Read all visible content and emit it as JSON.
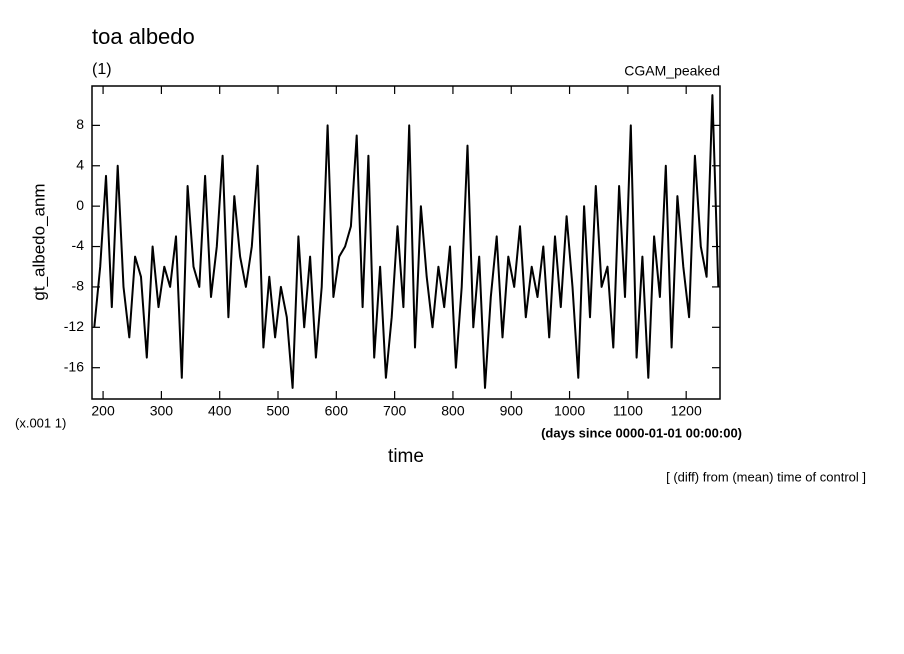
{
  "chart_data": {
    "type": "line",
    "title": "toa albedo",
    "subtitle": "(1)",
    "annotation": "CGAM_peaked",
    "y_label": "gt_albedo_anm",
    "y_unit": "(x.001 1)",
    "x_unit": "(days since 0000-01-01 00:00:00)",
    "x_label": "time",
    "footnote": "[ (diff) from (mean) time of control ]",
    "xlim": [
      181,
      1258
    ],
    "ylim": [
      -19.1,
      11.9
    ],
    "xticks": [
      200,
      300,
      400,
      500,
      600,
      700,
      800,
      900,
      1000,
      1100,
      1200
    ],
    "yticks": [
      -16,
      -12,
      -8,
      -4,
      0,
      4,
      8
    ],
    "x": [
      185,
      195,
      205,
      215,
      225,
      235,
      245,
      255,
      265,
      275,
      285,
      295,
      305,
      315,
      325,
      335,
      345,
      355,
      365,
      375,
      385,
      395,
      405,
      415,
      425,
      435,
      445,
      455,
      465,
      475,
      485,
      495,
      505,
      515,
      525,
      535,
      545,
      555,
      565,
      575,
      585,
      595,
      605,
      615,
      625,
      635,
      645,
      655,
      665,
      675,
      685,
      695,
      705,
      715,
      725,
      735,
      745,
      755,
      765,
      775,
      785,
      795,
      805,
      815,
      825,
      835,
      845,
      855,
      865,
      875,
      885,
      895,
      905,
      915,
      925,
      935,
      945,
      955,
      965,
      975,
      985,
      995,
      1005,
      1015,
      1025,
      1035,
      1045,
      1055,
      1065,
      1075,
      1085,
      1095,
      1105,
      1115,
      1125,
      1135,
      1145,
      1155,
      1165,
      1175,
      1185,
      1195,
      1205,
      1215,
      1225,
      1235,
      1245,
      1255
    ],
    "series": [
      {
        "color": "#000000",
        "values": [
          -12,
          -6,
          3,
          -10,
          4,
          -8,
          -13,
          -5,
          -7,
          -15,
          -4,
          -10,
          -6,
          -8,
          -3,
          -17,
          2,
          -6,
          -8,
          3,
          -9,
          -4,
          5,
          -11,
          1,
          -5,
          -8,
          -4,
          4,
          -14,
          -7,
          -13,
          -8,
          -11,
          -18,
          -3,
          -12,
          -5,
          -15,
          -8,
          8,
          -9,
          -5,
          -4,
          -2,
          7,
          -10,
          5,
          -15,
          -6,
          -17,
          -11,
          -2,
          -10,
          8,
          -14,
          0,
          -7,
          -12,
          -6,
          -10,
          -4,
          -16,
          -8,
          6,
          -12,
          -5,
          -18,
          -9,
          -3,
          -13,
          -5,
          -8,
          -2,
          -11,
          -6,
          -9,
          -4,
          -13,
          -3,
          -10,
          -1,
          -8,
          -17,
          0,
          -11,
          2,
          -8,
          -6,
          -14,
          2,
          -9,
          8,
          -15,
          -5,
          -17,
          -3,
          -9,
          4,
          -14,
          1,
          -6,
          -11,
          5,
          -4,
          -7,
          11,
          -8
        ]
      }
    ]
  }
}
